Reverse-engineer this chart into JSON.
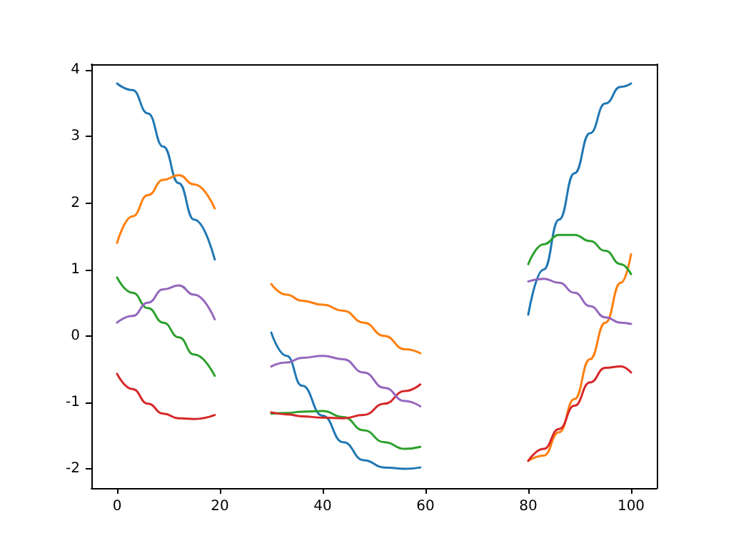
{
  "chart_data": {
    "type": "line",
    "x": [
      0,
      3,
      6,
      9,
      12,
      15,
      19,
      25,
      30,
      33,
      36,
      40,
      44,
      48,
      52,
      56,
      59,
      70,
      80,
      83,
      86,
      89,
      92,
      95,
      98,
      100
    ],
    "series": [
      {
        "color": "#1f77b4",
        "values": [
          3.8,
          3.7,
          3.35,
          2.85,
          2.3,
          1.75,
          1.15,
          null,
          0.05,
          -0.3,
          -0.75,
          -1.2,
          -1.6,
          -1.87,
          -1.98,
          -2.0,
          -1.98,
          null,
          0.32,
          1.0,
          1.75,
          2.45,
          3.05,
          3.5,
          3.75,
          3.8
        ]
      },
      {
        "color": "#ff7f0e",
        "values": [
          1.4,
          1.8,
          2.12,
          2.35,
          2.42,
          2.28,
          1.92,
          null,
          0.78,
          0.62,
          0.53,
          0.47,
          0.38,
          0.2,
          0.0,
          -0.2,
          -0.26,
          null,
          -1.88,
          -1.8,
          -1.45,
          -0.95,
          -0.35,
          0.2,
          0.8,
          1.23
        ]
      },
      {
        "color": "#2ca02c",
        "values": [
          0.88,
          0.65,
          0.42,
          0.2,
          -0.02,
          -0.28,
          -0.6,
          null,
          -1.17,
          -1.16,
          -1.14,
          -1.13,
          -1.22,
          -1.42,
          -1.6,
          -1.7,
          -1.67,
          null,
          1.08,
          1.38,
          1.52,
          1.52,
          1.43,
          1.28,
          1.08,
          0.93
        ]
      },
      {
        "color": "#d62728",
        "values": [
          -0.57,
          -0.8,
          -1.02,
          -1.17,
          -1.24,
          -1.25,
          -1.19,
          null,
          -1.15,
          -1.18,
          -1.21,
          -1.23,
          -1.24,
          -1.19,
          -1.02,
          -0.83,
          -0.73,
          null,
          -1.88,
          -1.7,
          -1.4,
          -1.05,
          -0.7,
          -0.48,
          -0.46,
          -0.55
        ]
      },
      {
        "color": "#9467bd",
        "values": [
          0.2,
          0.3,
          0.5,
          0.7,
          0.76,
          0.62,
          0.25,
          null,
          -0.46,
          -0.4,
          -0.33,
          -0.3,
          -0.35,
          -0.55,
          -0.78,
          -0.98,
          -1.06,
          null,
          0.82,
          0.86,
          0.8,
          0.65,
          0.45,
          0.28,
          0.2,
          0.18
        ]
      }
    ],
    "xlim": [
      -5,
      105
    ],
    "xticks": [
      0,
      20,
      40,
      60,
      80,
      100
    ],
    "ylim": [
      -2.29,
      4.09
    ],
    "yticks": [
      -2,
      -1,
      0,
      1,
      2,
      3,
      4
    ],
    "grid": false,
    "marker": "none",
    "line_style": "solid"
  }
}
